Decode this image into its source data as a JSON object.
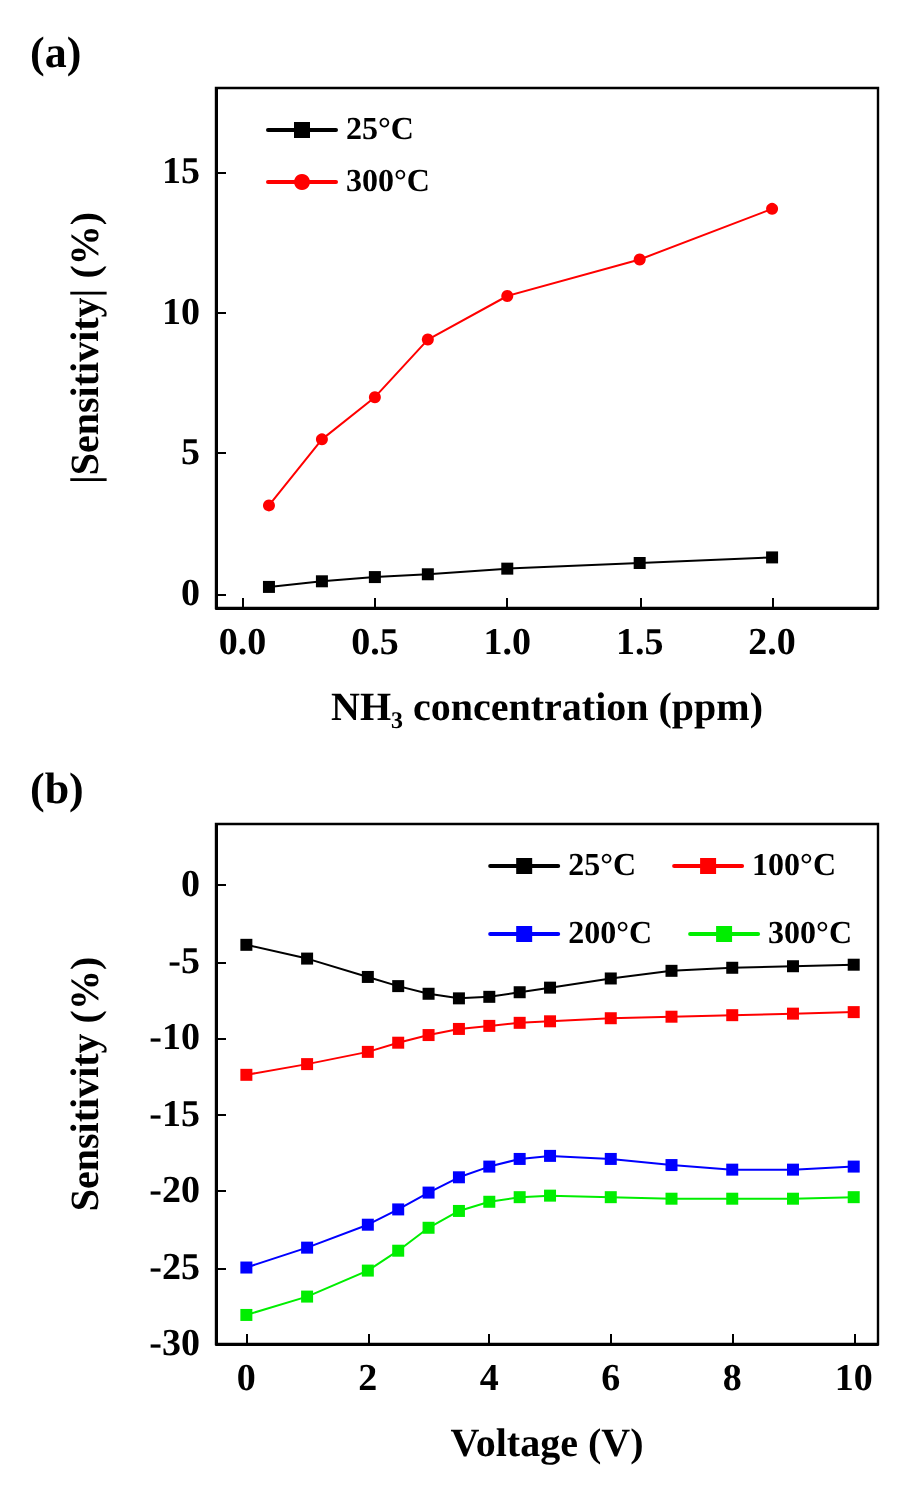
{
  "chart_data": [
    {
      "type": "line",
      "title": "(a)",
      "xlabel": "NH₃ concentration (ppm)",
      "ylabel": "|Sensitivity| (%)",
      "x": [
        0.1,
        0.3,
        0.5,
        0.7,
        1.0,
        1.5,
        2.0
      ],
      "series": [
        {
          "name": "25°C",
          "color": "#000000",
          "values": [
            0.25,
            0.45,
            0.6,
            0.7,
            0.9,
            1.1,
            1.3
          ]
        },
        {
          "name": "300°C",
          "color": "#ff0000",
          "marker": "circle",
          "values": [
            3.15,
            5.5,
            7.0,
            9.05,
            10.6,
            11.9,
            13.7
          ]
        }
      ],
      "xlim": [
        -0.1,
        2.4
      ],
      "xticks": [
        {
          "value": 0,
          "label": "0.0"
        },
        {
          "value": 0.5,
          "label": "0.5"
        },
        {
          "value": 1,
          "label": "1.0"
        },
        {
          "value": 1.5,
          "label": "1.5"
        },
        {
          "value": 2,
          "label": "2.0"
        }
      ],
      "ylim": [
        -0.5,
        18
      ],
      "yticks": [
        0,
        5,
        10,
        15
      ],
      "grid": false,
      "legend": "top left",
      "marker": "square",
      "line_style": "solid"
    },
    {
      "type": "line",
      "title": "(b)",
      "xlabel": "Voltage (V)",
      "ylabel": "Sensitivity (%)",
      "x": [
        0,
        1,
        2,
        2.5,
        3,
        3.5,
        4,
        4.5,
        5,
        6,
        7,
        8,
        9,
        10
      ],
      "series": [
        {
          "name": "25°C",
          "color": "#000000",
          "values": [
            -3.9,
            -4.8,
            -6.0,
            -6.6,
            -7.1,
            -7.4,
            -7.3,
            -7.0,
            -6.7,
            -6.1,
            -5.6,
            -5.4,
            -5.3,
            -5.2
          ]
        },
        {
          "name": "100°C",
          "color": "#ff0000",
          "values": [
            -12.4,
            -11.7,
            -10.9,
            -10.3,
            -9.8,
            -9.4,
            -9.2,
            -9.0,
            -8.9,
            -8.7,
            -8.6,
            -8.5,
            -8.4,
            -8.3
          ]
        },
        {
          "name": "200°C",
          "color": "#0000ff",
          "values": [
            -25.0,
            -23.7,
            -22.2,
            -21.2,
            -20.1,
            -19.1,
            -18.4,
            -17.9,
            -17.7,
            -17.9,
            -18.3,
            -18.6,
            -18.6,
            -18.4
          ]
        },
        {
          "name": "300°C",
          "color": "#00ee00",
          "values": [
            -28.1,
            -26.9,
            -25.2,
            -23.9,
            -22.4,
            -21.3,
            -20.7,
            -20.4,
            -20.3,
            -20.4,
            -20.5,
            -20.5,
            -20.5,
            -20.4
          ]
        }
      ],
      "xlim": [
        -0.5,
        10.4
      ],
      "xticks": [
        0,
        2,
        4,
        6,
        8,
        10
      ],
      "ylim": [
        -30,
        4
      ],
      "yticks": [
        -30,
        -25,
        -20,
        -15,
        -10,
        -5,
        0
      ],
      "grid": false,
      "legend": "top right",
      "marker": "square",
      "line_style": "solid"
    }
  ]
}
